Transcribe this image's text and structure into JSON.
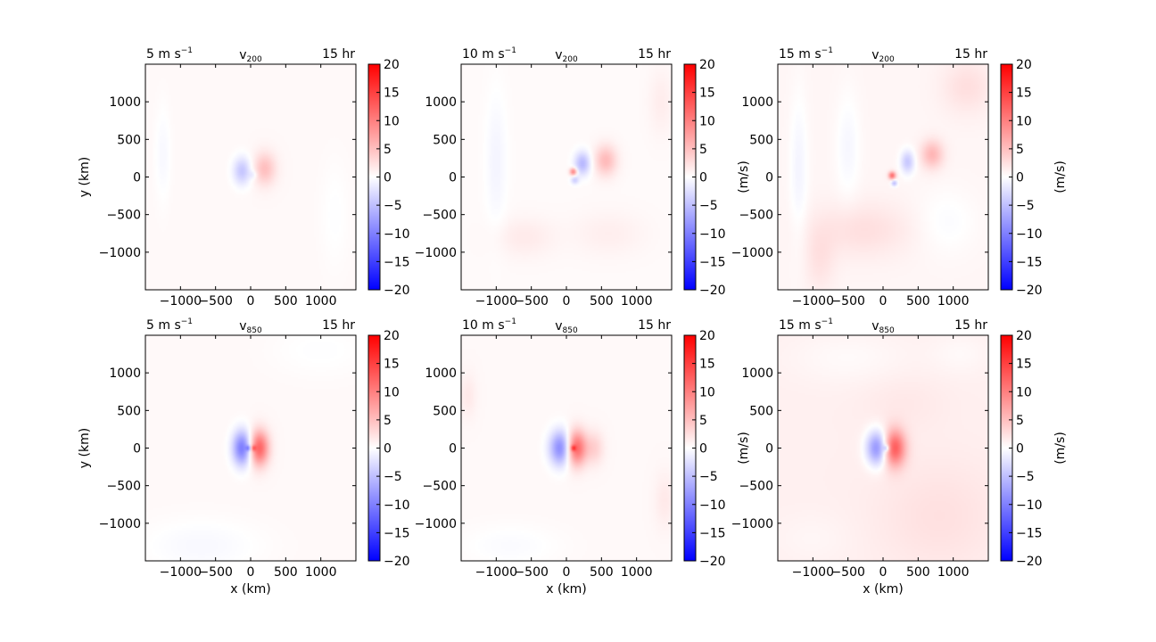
{
  "colors": {
    "negative": "#0000ff",
    "zero": "#ffffff",
    "positive": "#ff0000",
    "frame": "#000000"
  },
  "chart_data": [
    {
      "type": "heatmap",
      "panel": "top-left",
      "variable": "v",
      "level": "200",
      "speed_label": "5 m s",
      "speed_exp": "−1",
      "time_label": "15 hr",
      "xlabel": "",
      "ylabel": "y (km)",
      "colorbar_label": "",
      "xlim": [
        -1500,
        1500
      ],
      "ylim": [
        -1500,
        1500
      ],
      "xticks": [
        -1000,
        -500,
        0,
        500,
        1000
      ],
      "yticks": [
        -1000,
        -500,
        0,
        500,
        1000
      ],
      "colorbar_range": [
        -20,
        20
      ],
      "colorbar_ticks": [
        -20,
        -15,
        -10,
        -5,
        0,
        5,
        10,
        15,
        20
      ],
      "features": [
        {
          "x": -120,
          "y": 80,
          "sx": 90,
          "sy": 130,
          "amp": -5.0
        },
        {
          "x": 200,
          "y": 110,
          "sx": 110,
          "sy": 150,
          "amp": 4.5
        },
        {
          "x": 40,
          "y": 30,
          "sx": 40,
          "sy": 40,
          "amp": -2.0
        },
        {
          "x": -1250,
          "y": 300,
          "sx": 80,
          "sy": 450,
          "amp": -1.0
        },
        {
          "x": 1200,
          "y": -500,
          "sx": 150,
          "sy": 500,
          "amp": -0.6
        }
      ],
      "background": 0.5
    },
    {
      "type": "heatmap",
      "panel": "top-middle",
      "variable": "v",
      "level": "200",
      "speed_label": "10 m s",
      "speed_exp": "−1",
      "time_label": "15 hr",
      "xlabel": "",
      "ylabel": "",
      "colorbar_label": "(m/s)",
      "xlim": [
        -1500,
        1500
      ],
      "ylim": [
        -1500,
        1500
      ],
      "xticks": [
        -1000,
        -500,
        0,
        500,
        1000
      ],
      "yticks": [
        -1000,
        -500,
        0,
        500,
        1000
      ],
      "colorbar_range": [
        -20,
        20
      ],
      "colorbar_ticks": [
        -20,
        -15,
        -10,
        -5,
        0,
        5,
        10,
        15,
        20
      ],
      "features": [
        {
          "x": 100,
          "y": 70,
          "sx": 35,
          "sy": 35,
          "amp": 10.0
        },
        {
          "x": 230,
          "y": 180,
          "sx": 80,
          "sy": 110,
          "amp": -6.0
        },
        {
          "x": 560,
          "y": 220,
          "sx": 110,
          "sy": 140,
          "amp": 5.0
        },
        {
          "x": 120,
          "y": -40,
          "sx": 40,
          "sy": 40,
          "amp": -4.0
        },
        {
          "x": -1000,
          "y": 200,
          "sx": 110,
          "sy": 650,
          "amp": -1.2
        },
        {
          "x": -600,
          "y": -800,
          "sx": 300,
          "sy": 180,
          "amp": 1.2
        },
        {
          "x": 600,
          "y": -750,
          "sx": 350,
          "sy": 200,
          "amp": 0.9
        },
        {
          "x": 1350,
          "y": 1000,
          "sx": 120,
          "sy": 300,
          "amp": 1.0
        }
      ],
      "background": 0.4
    },
    {
      "type": "heatmap",
      "panel": "top-right",
      "variable": "v",
      "level": "200",
      "speed_label": "15 m s",
      "speed_exp": "−1",
      "time_label": "15 hr",
      "xlabel": "",
      "ylabel": "",
      "colorbar_label": "(m/s)",
      "xlim": [
        -1500,
        1500
      ],
      "ylim": [
        -1500,
        1500
      ],
      "xticks": [
        -1000,
        -500,
        0,
        500,
        1000
      ],
      "yticks": [
        -1000,
        -500,
        0,
        500,
        1000
      ],
      "colorbar_range": [
        -20,
        20
      ],
      "colorbar_ticks": [
        -20,
        -15,
        -10,
        -5,
        0,
        5,
        10,
        15,
        20
      ],
      "features": [
        {
          "x": 130,
          "y": 20,
          "sx": 35,
          "sy": 35,
          "amp": 11.0
        },
        {
          "x": 160,
          "y": -80,
          "sx": 30,
          "sy": 30,
          "amp": -6.0
        },
        {
          "x": 350,
          "y": 200,
          "sx": 70,
          "sy": 110,
          "amp": -5.0
        },
        {
          "x": 700,
          "y": 300,
          "sx": 110,
          "sy": 130,
          "amp": 5.0
        },
        {
          "x": -1200,
          "y": 100,
          "sx": 90,
          "sy": 700,
          "amp": -1.5
        },
        {
          "x": -500,
          "y": 400,
          "sx": 120,
          "sy": 500,
          "amp": -1.3
        },
        {
          "x": -300,
          "y": -700,
          "sx": 500,
          "sy": 250,
          "amp": 1.8
        },
        {
          "x": -900,
          "y": -1100,
          "sx": 150,
          "sy": 300,
          "amp": 1.5
        },
        {
          "x": 1200,
          "y": 1200,
          "sx": 250,
          "sy": 250,
          "amp": 1.8
        },
        {
          "x": 900,
          "y": -600,
          "sx": 300,
          "sy": 300,
          "amp": -1.0
        }
      ],
      "background": 0.7
    },
    {
      "type": "heatmap",
      "panel": "bottom-left",
      "variable": "v",
      "level": "850",
      "speed_label": "5 m s",
      "speed_exp": "−1",
      "time_label": "15 hr",
      "xlabel": "x (km)",
      "ylabel": "y (km)",
      "colorbar_label": "",
      "xlim": [
        -1500,
        1500
      ],
      "ylim": [
        -1500,
        1500
      ],
      "xticks": [
        -1000,
        -500,
        0,
        500,
        1000
      ],
      "yticks": [
        -1000,
        -500,
        0,
        500,
        1000
      ],
      "colorbar_range": [
        -20,
        20
      ],
      "colorbar_ticks": [
        -20,
        -15,
        -10,
        -5,
        0,
        5,
        10,
        15,
        20
      ],
      "features": [
        {
          "x": -120,
          "y": 0,
          "sx": 95,
          "sy": 160,
          "amp": -11.0
        },
        {
          "x": 120,
          "y": 0,
          "sx": 95,
          "sy": 160,
          "amp": 12.0
        },
        {
          "x": -30,
          "y": 0,
          "sx": 25,
          "sy": 25,
          "amp": -7.0
        },
        {
          "x": 40,
          "y": 0,
          "sx": 25,
          "sy": 25,
          "amp": 7.0
        },
        {
          "x": -700,
          "y": -1300,
          "sx": 600,
          "sy": 250,
          "amp": -1.0
        },
        {
          "x": 1000,
          "y": 1300,
          "sx": 500,
          "sy": 250,
          "amp": -0.6
        }
      ],
      "background": 0.5
    },
    {
      "type": "heatmap",
      "panel": "bottom-middle",
      "variable": "v",
      "level": "850",
      "speed_label": "10 m s",
      "speed_exp": "−1",
      "time_label": "15 hr",
      "xlabel": "x (km)",
      "ylabel": "",
      "colorbar_label": "(m/s)",
      "xlim": [
        -1500,
        1500
      ],
      "ylim": [
        -1500,
        1500
      ],
      "xticks": [
        -1000,
        -500,
        0,
        500,
        1000
      ],
      "yticks": [
        -1000,
        -500,
        0,
        500,
        1000
      ],
      "colorbar_range": [
        -20,
        20
      ],
      "colorbar_ticks": [
        -20,
        -15,
        -10,
        -5,
        0,
        5,
        10,
        15,
        20
      ],
      "features": [
        {
          "x": -80,
          "y": 0,
          "sx": 110,
          "sy": 160,
          "amp": -10.0
        },
        {
          "x": 140,
          "y": 0,
          "sx": 100,
          "sy": 160,
          "amp": 12.0
        },
        {
          "x": 100,
          "y": 0,
          "sx": 25,
          "sy": 25,
          "amp": 8.0
        },
        {
          "x": 400,
          "y": 0,
          "sx": 90,
          "sy": 150,
          "amp": 3.0
        },
        {
          "x": -1400,
          "y": 700,
          "sx": 80,
          "sy": 200,
          "amp": 1.2
        },
        {
          "x": 1400,
          "y": -700,
          "sx": 100,
          "sy": 250,
          "amp": 1.2
        },
        {
          "x": -800,
          "y": -1300,
          "sx": 500,
          "sy": 200,
          "amp": -0.8
        }
      ],
      "background": 0.5
    },
    {
      "type": "heatmap",
      "panel": "bottom-right",
      "variable": "v",
      "level": "850",
      "speed_label": "15 m s",
      "speed_exp": "−1",
      "time_label": "15 hr",
      "xlabel": "x (km)",
      "ylabel": "",
      "colorbar_label": "(m/s)",
      "xlim": [
        -1500,
        1500
      ],
      "ylim": [
        -1500,
        1500
      ],
      "xticks": [
        -1000,
        -500,
        0,
        500,
        1000
      ],
      "yticks": [
        -1000,
        -500,
        0,
        500,
        1000
      ],
      "colorbar_range": [
        -20,
        20
      ],
      "colorbar_ticks": [
        -20,
        -15,
        -10,
        -5,
        0,
        5,
        10,
        15,
        20
      ],
      "features": [
        {
          "x": -80,
          "y": 0,
          "sx": 110,
          "sy": 160,
          "amp": -10.0
        },
        {
          "x": 160,
          "y": 0,
          "sx": 110,
          "sy": 170,
          "amp": 12.0
        },
        {
          "x": 50,
          "y": 0,
          "sx": 30,
          "sy": 30,
          "amp": -6.0
        },
        {
          "x": 300,
          "y": 600,
          "sx": 400,
          "sy": 250,
          "amp": 0.6
        },
        {
          "x": -500,
          "y": 1200,
          "sx": 600,
          "sy": 250,
          "amp": -0.8
        },
        {
          "x": 1100,
          "y": 1250,
          "sx": 300,
          "sy": 200,
          "amp": -0.7
        },
        {
          "x": -1000,
          "y": -1200,
          "sx": 400,
          "sy": 250,
          "amp": -0.5
        },
        {
          "x": 800,
          "y": -900,
          "sx": 600,
          "sy": 500,
          "amp": 1.2
        }
      ],
      "background": 1.2
    }
  ]
}
